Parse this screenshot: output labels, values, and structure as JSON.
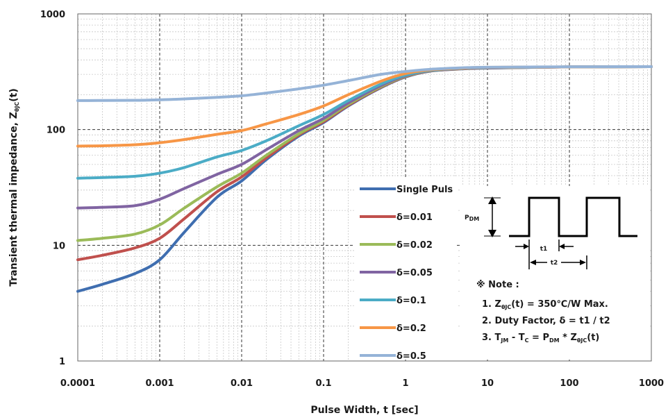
{
  "chart_data": {
    "type": "line",
    "xlabel": "Pulse Width, t [sec]",
    "ylabel": "Transient thermal impedance, Z",
    "ylabel_sub": "θJC",
    "ylabel_suffix": "(t)",
    "xscale": "log",
    "yscale": "log",
    "xlim": [
      0.0001,
      1000
    ],
    "ylim": [
      1,
      1000
    ],
    "x_tick_labels": [
      "0.0001",
      "0.001",
      "0.01",
      "0.1",
      "1",
      "10",
      "100",
      "1000"
    ],
    "y_tick_labels": [
      "1",
      "10",
      "100",
      "1000"
    ],
    "grid": true,
    "legend_position": "lower-middle",
    "series": [
      {
        "name": "Single Puls",
        "color": "#3f6eb0",
        "x": [
          0.0001,
          0.0002,
          0.0005,
          0.001,
          0.002,
          0.005,
          0.01,
          0.02,
          0.05,
          0.1,
          0.2,
          0.5,
          1,
          2,
          5,
          10,
          100,
          1000
        ],
        "y": [
          4,
          4.6,
          5.7,
          7.5,
          13,
          26,
          36,
          55,
          88,
          115,
          160,
          230,
          285,
          320,
          335,
          340,
          348,
          350
        ]
      },
      {
        "name": "δ=0.01",
        "color": "#c0504d",
        "x": [
          0.0001,
          0.0002,
          0.0005,
          0.001,
          0.002,
          0.005,
          0.01,
          0.02,
          0.05,
          0.1,
          0.2,
          0.5,
          1,
          2,
          5,
          10,
          100,
          1000
        ],
        "y": [
          7.5,
          8.2,
          9.5,
          11.5,
          17,
          29,
          39,
          57,
          90,
          117,
          162,
          232,
          287,
          321,
          336,
          341,
          348,
          350
        ]
      },
      {
        "name": "δ=0.02",
        "color": "#9bbb59",
        "x": [
          0.0001,
          0.0002,
          0.0005,
          0.001,
          0.002,
          0.005,
          0.01,
          0.02,
          0.05,
          0.1,
          0.2,
          0.5,
          1,
          2,
          5,
          10,
          100,
          1000
        ],
        "y": [
          11,
          11.5,
          12.5,
          15,
          21,
          32,
          42,
          60,
          92,
          120,
          165,
          235,
          289,
          322,
          337,
          342,
          348,
          350
        ]
      },
      {
        "name": "δ=0.05",
        "color": "#8064a2",
        "x": [
          0.0001,
          0.0002,
          0.0005,
          0.001,
          0.002,
          0.005,
          0.01,
          0.02,
          0.05,
          0.1,
          0.2,
          0.5,
          1,
          2,
          5,
          10,
          100,
          1000
        ],
        "y": [
          21,
          21.3,
          22,
          25,
          31,
          41,
          50,
          67,
          98,
          125,
          170,
          240,
          292,
          323,
          338,
          343,
          348,
          350
        ]
      },
      {
        "name": "δ=0.1",
        "color": "#4bacc6",
        "x": [
          0.0001,
          0.0002,
          0.0005,
          0.001,
          0.002,
          0.005,
          0.01,
          0.02,
          0.05,
          0.1,
          0.2,
          0.5,
          1,
          2,
          5,
          10,
          100,
          1000
        ],
        "y": [
          38,
          38.5,
          39.5,
          42,
          47,
          58,
          66,
          80,
          108,
          135,
          178,
          247,
          296,
          325,
          339,
          344,
          348,
          350
        ]
      },
      {
        "name": "δ=0.2",
        "color": "#f79646",
        "x": [
          0.0001,
          0.0002,
          0.0005,
          0.001,
          0.002,
          0.005,
          0.01,
          0.02,
          0.05,
          0.1,
          0.2,
          0.5,
          1,
          2,
          5,
          10,
          100,
          1000
        ],
        "y": [
          72,
          72.5,
          74,
          77,
          82,
          91,
          98,
          112,
          135,
          160,
          200,
          262,
          305,
          328,
          340,
          345,
          348,
          350
        ]
      },
      {
        "name": "δ=0.5",
        "color": "#95b3d7",
        "x": [
          0.0001,
          0.0002,
          0.0005,
          0.001,
          0.002,
          0.005,
          0.01,
          0.02,
          0.05,
          0.1,
          0.2,
          0.5,
          1,
          2,
          5,
          10,
          100,
          1000
        ],
        "y": [
          178,
          178.5,
          179,
          181,
          184,
          190,
          196,
          207,
          225,
          242,
          265,
          300,
          318,
          332,
          342,
          346,
          349,
          350
        ]
      }
    ],
    "annotations": {
      "pulse_label": "P",
      "pulse_label_sub": "DM",
      "t1_label": "t1",
      "t2_label": "t2",
      "note_title": "※ Note :",
      "note1_a": "1. Z",
      "note1_sub": "θJC",
      "note1_b": "(t) = 350℃/W Max.",
      "note2": "2. Duty Factor, δ = t1 / t2",
      "note3_a": "3. T",
      "note3_sub1": "JM",
      "note3_b": " - T",
      "note3_sub2": "C",
      "note3_c": " = P",
      "note3_sub3": "DM",
      "note3_d": " * Z",
      "note3_sub4": "θJC",
      "note3_e": "(t)"
    }
  }
}
